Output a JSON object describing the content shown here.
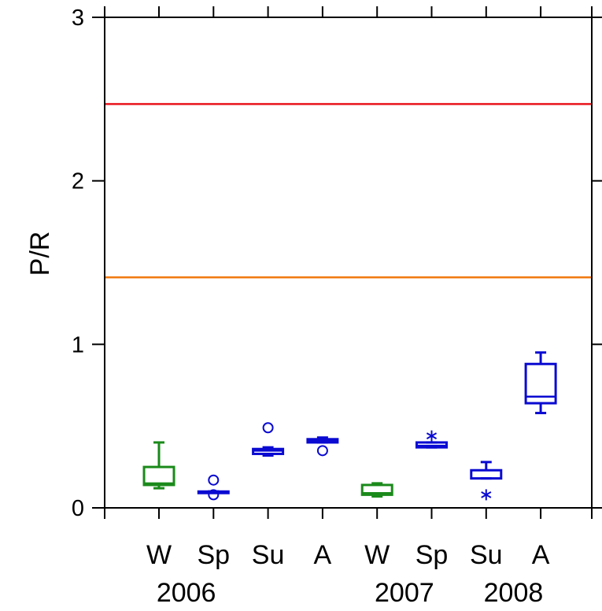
{
  "chart_data": {
    "type": "box",
    "title": "",
    "xlabel": "",
    "ylabel": "P/R",
    "ylim": [
      0,
      3
    ],
    "yticks": [
      "0",
      "1",
      "2",
      "3"
    ],
    "grid": false,
    "categories": [
      "W",
      "Sp",
      "Su",
      "A",
      "W",
      "Sp",
      "Su",
      "A"
    ],
    "years": [
      "2006",
      "2007",
      "2008"
    ],
    "reference_lines": [
      {
        "y": 2.47,
        "color": "#e8141c"
      },
      {
        "y": 1.41,
        "color": "#f07a10"
      }
    ],
    "boxes": [
      {
        "season": "W",
        "year": "2006",
        "color": "#1a8a1a",
        "min": 0.12,
        "q1": 0.14,
        "median": 0.15,
        "q3": 0.25,
        "max": 0.4,
        "outliers": []
      },
      {
        "season": "Sp",
        "year": "2006",
        "color": "#0a0ad2",
        "min": 0.1,
        "q1": 0.1,
        "median": 0.1,
        "q3": 0.1,
        "max": 0.1,
        "outliers": [
          {
            "y": 0.17,
            "marker": "circle"
          },
          {
            "y": 0.08,
            "marker": "circle"
          }
        ]
      },
      {
        "season": "Su",
        "year": "2006",
        "color": "#0a0ad2",
        "min": 0.32,
        "q1": 0.33,
        "median": 0.35,
        "q3": 0.36,
        "max": 0.37,
        "outliers": [
          {
            "y": 0.49,
            "marker": "circle"
          }
        ]
      },
      {
        "season": "A",
        "year": "2006",
        "color": "#0a0ad2",
        "min": 0.4,
        "q1": 0.4,
        "median": 0.41,
        "q3": 0.42,
        "max": 0.43,
        "outliers": [
          {
            "y": 0.35,
            "marker": "circle"
          }
        ]
      },
      {
        "season": "W",
        "year": "2007",
        "color": "#1a8a1a",
        "min": 0.07,
        "q1": 0.08,
        "median": 0.09,
        "q3": 0.14,
        "max": 0.15,
        "outliers": []
      },
      {
        "season": "Sp",
        "year": "2007",
        "color": "#0a0ad2",
        "min": 0.37,
        "q1": 0.37,
        "median": 0.38,
        "q3": 0.4,
        "max": 0.4,
        "outliers": [
          {
            "y": 0.44,
            "marker": "asterisk"
          }
        ]
      },
      {
        "season": "Su",
        "year": "2007",
        "color": "#0a0ad2",
        "min": 0.18,
        "q1": 0.18,
        "median": 0.18,
        "q3": 0.23,
        "max": 0.28,
        "outliers": [
          {
            "y": 0.08,
            "marker": "asterisk"
          }
        ]
      },
      {
        "season": "A",
        "year": "2008",
        "color": "#0a0ad2",
        "min": 0.58,
        "q1": 0.64,
        "median": 0.68,
        "q3": 0.88,
        "max": 0.95,
        "outliers": []
      }
    ]
  }
}
